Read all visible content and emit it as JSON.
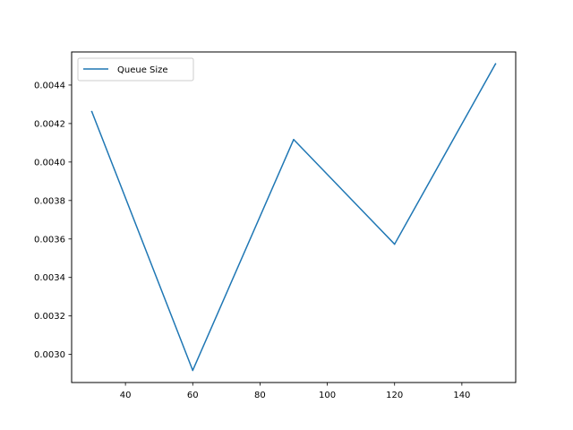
{
  "chart_data": {
    "type": "line",
    "title": "",
    "xlabel": "",
    "ylabel": "",
    "x": [
      30,
      60,
      90,
      120,
      150
    ],
    "series": [
      {
        "name": "Queue Size",
        "color": "#1f77b4",
        "values": [
          0.004262,
          0.002917,
          0.004117,
          0.003573,
          0.00451
        ]
      }
    ],
    "xlim": [
      24,
      156
    ],
    "ylim": [
      0.002854,
      0.004572
    ],
    "xticks": [
      40,
      60,
      80,
      100,
      120,
      140
    ],
    "xtick_labels": [
      "40",
      "60",
      "80",
      "100",
      "120",
      "140"
    ],
    "yticks": [
      0.003,
      0.0032,
      0.0034,
      0.0036,
      0.0038,
      0.004,
      0.0042,
      0.0044
    ],
    "ytick_labels": [
      "0.0030",
      "0.0032",
      "0.0034",
      "0.0036",
      "0.0038",
      "0.0040",
      "0.0042",
      "0.0044"
    ],
    "grid": false,
    "legend_position": "top-left"
  }
}
